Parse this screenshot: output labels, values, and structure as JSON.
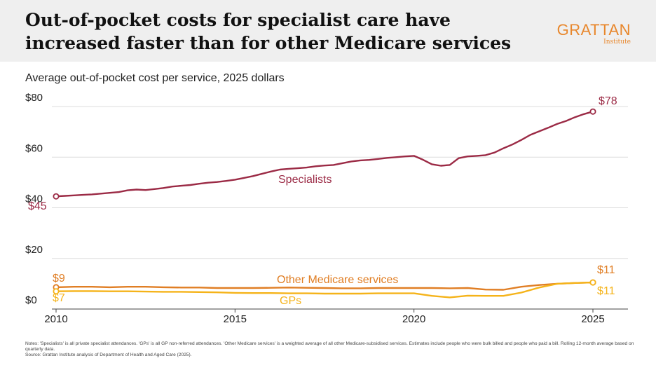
{
  "header": {
    "title": "Out-of-pocket costs for specialist care have increased faster than for other Medicare services",
    "logo_text": "GRATTAN",
    "logo_sub": "Institute"
  },
  "chart_data": {
    "type": "line",
    "subtitle": "Average out-of-pocket cost per service, 2025 dollars",
    "xlim": [
      2010,
      2025.5
    ],
    "ylim": [
      0,
      80
    ],
    "x_ticks": [
      2010,
      2015,
      2020,
      2025
    ],
    "x_tick_labels": [
      "2010",
      "2015",
      "2020",
      "2025"
    ],
    "y_ticks": [
      0,
      20,
      40,
      60,
      80
    ],
    "y_tick_labels": [
      "$0",
      "$20",
      "$40",
      "$60",
      "$80"
    ],
    "grid": true,
    "series": [
      {
        "name": "Specialists",
        "color": "#9b2a45",
        "start_label": "$45",
        "end_label": "$78",
        "x": [
          2010.0,
          2010.25,
          2010.5,
          2010.75,
          2011.0,
          2011.25,
          2011.5,
          2011.75,
          2012.0,
          2012.25,
          2012.5,
          2012.75,
          2013.0,
          2013.25,
          2013.5,
          2013.75,
          2014.0,
          2014.25,
          2014.5,
          2014.75,
          2015.0,
          2015.25,
          2015.5,
          2015.75,
          2016.0,
          2016.25,
          2016.5,
          2016.75,
          2017.0,
          2017.25,
          2017.5,
          2017.75,
          2018.0,
          2018.25,
          2018.5,
          2018.75,
          2019.0,
          2019.25,
          2019.5,
          2019.75,
          2020.0,
          2020.25,
          2020.5,
          2020.75,
          2021.0,
          2021.25,
          2021.5,
          2021.75,
          2022.0,
          2022.25,
          2022.5,
          2022.75,
          2023.0,
          2023.25,
          2023.5,
          2023.75,
          2024.0,
          2024.25,
          2024.5,
          2024.75,
          2025.0
        ],
        "values": [
          44.5,
          44.7,
          44.9,
          45.1,
          45.3,
          45.6,
          45.9,
          46.2,
          46.9,
          47.2,
          47.0,
          47.4,
          47.8,
          48.4,
          48.7,
          49.0,
          49.5,
          49.9,
          50.2,
          50.6,
          51.1,
          51.8,
          52.5,
          53.4,
          54.3,
          55.1,
          55.4,
          55.6,
          55.9,
          56.4,
          56.7,
          56.9,
          57.6,
          58.3,
          58.7,
          58.9,
          59.3,
          59.7,
          60.0,
          60.3,
          60.5,
          59.0,
          57.2,
          56.6,
          56.9,
          59.6,
          60.3,
          60.5,
          60.8,
          61.8,
          63.5,
          65.0,
          66.8,
          68.8,
          70.2,
          71.6,
          73.1,
          74.3,
          75.8,
          77.0,
          78.0
        ]
      },
      {
        "name": "Other Medicare services",
        "color": "#e07e24",
        "start_label": "$9",
        "end_label": "$11",
        "x": [
          2010.0,
          2010.5,
          2011.0,
          2011.5,
          2012.0,
          2012.5,
          2013.0,
          2013.5,
          2014.0,
          2014.5,
          2015.0,
          2015.5,
          2016.0,
          2016.5,
          2017.0,
          2017.5,
          2018.0,
          2018.5,
          2019.0,
          2019.5,
          2020.0,
          2020.5,
          2021.0,
          2021.5,
          2022.0,
          2022.5,
          2023.0,
          2023.5,
          2024.0,
          2024.5,
          2025.0
        ],
        "values": [
          8.6,
          8.8,
          8.8,
          8.6,
          8.8,
          8.8,
          8.6,
          8.5,
          8.5,
          8.3,
          8.3,
          8.3,
          8.4,
          8.5,
          8.4,
          8.3,
          8.2,
          8.2,
          8.3,
          8.3,
          8.3,
          8.3,
          8.2,
          8.3,
          7.7,
          7.6,
          8.8,
          9.5,
          10.0,
          10.3,
          10.5
        ]
      },
      {
        "name": "GPs",
        "color": "#f5b319",
        "start_label": "$7",
        "end_label": "$11",
        "x": [
          2010.0,
          2010.5,
          2011.0,
          2011.5,
          2012.0,
          2012.5,
          2013.0,
          2013.5,
          2014.0,
          2014.5,
          2015.0,
          2015.5,
          2016.0,
          2016.5,
          2017.0,
          2017.5,
          2018.0,
          2018.5,
          2019.0,
          2019.5,
          2020.0,
          2020.5,
          2021.0,
          2021.5,
          2022.0,
          2022.5,
          2023.0,
          2023.5,
          2024.0,
          2024.5,
          2025.0
        ],
        "values": [
          7.0,
          7.1,
          7.1,
          7.0,
          7.0,
          6.9,
          6.8,
          6.8,
          6.7,
          6.6,
          6.4,
          6.3,
          6.3,
          6.2,
          6.2,
          6.1,
          6.1,
          6.1,
          6.2,
          6.2,
          6.2,
          5.2,
          4.6,
          5.3,
          5.2,
          5.2,
          6.5,
          8.5,
          10.0,
          10.3,
          10.5
        ]
      }
    ]
  },
  "notes": {
    "line1": "Notes: 'Specialists' is all private specialist attendances. 'GPs' is all GP non-referred attendances. 'Other Medicare services' is a weighted average of all other Medicare-subsidised services. Estimates include people who were bulk billed and people who paid a bill. Rolling 12-month average based on quarterly data.",
    "line2": "Source: Grattan Institute analysis of Department of Health and Aged Care (2025)."
  }
}
